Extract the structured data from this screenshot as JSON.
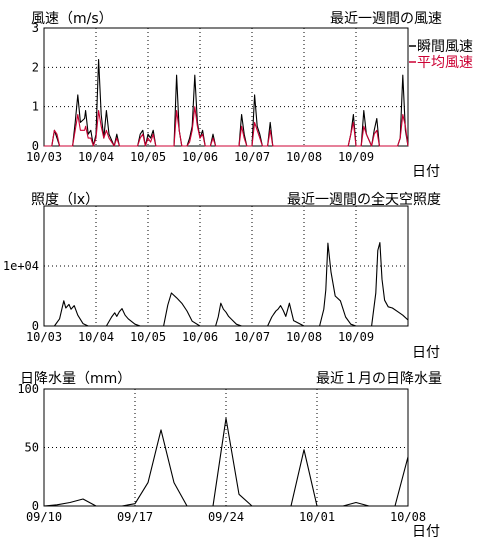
{
  "chart_data": [
    {
      "type": "line",
      "title": "最近一週間の風速",
      "ylabel": "風速（m/s）",
      "xlabel": "日付",
      "ylim": [
        0,
        3
      ],
      "yticks": [
        "0",
        "1",
        "2",
        "3"
      ],
      "categories": [
        "10/03",
        "10/04",
        "10/05",
        "10/06",
        "10/07",
        "10/08",
        "10/09"
      ],
      "x_max": 7,
      "grid": true,
      "legend": "top-right",
      "series": [
        {
          "name": "瞬間風速",
          "color": "#000000",
          "x": [
            0,
            0.15,
            0.2,
            0.25,
            0.3,
            0.55,
            0.6,
            0.65,
            0.7,
            0.78,
            0.8,
            0.85,
            0.9,
            0.95,
            1.0,
            1.05,
            1.1,
            1.15,
            1.2,
            1.25,
            1.35,
            1.4,
            1.45,
            1.8,
            1.85,
            1.9,
            1.95,
            2.0,
            2.05,
            2.1,
            2.15,
            2.5,
            2.55,
            2.6,
            2.65,
            2.75,
            2.8,
            2.85,
            2.9,
            2.95,
            3.0,
            3.05,
            3.1,
            3.2,
            3.25,
            3.3,
            3.75,
            3.8,
            3.85,
            3.9,
            3.95,
            4.0,
            4.05,
            4.1,
            4.15,
            4.2,
            4.3,
            4.35,
            4.4,
            5.85,
            5.9,
            5.95,
            6.0,
            6.1,
            6.15,
            6.2,
            6.3,
            6.35,
            6.4,
            6.45,
            6.8,
            6.85,
            6.9,
            6.95,
            7.0
          ],
          "y": [
            0,
            0,
            0.4,
            0.2,
            0,
            0,
            0.6,
            1.3,
            0.6,
            0.7,
            0.9,
            0.3,
            0.4,
            0,
            0.3,
            2.2,
            0.8,
            0.2,
            0.9,
            0.3,
            0,
            0.3,
            0,
            0,
            0.3,
            0.4,
            0,
            0.3,
            0.2,
            0.4,
            0,
            0,
            1.8,
            0.4,
            0,
            0,
            0.2,
            0.5,
            1.8,
            0.6,
            0.2,
            0.4,
            0,
            0,
            0.3,
            0,
            0,
            0.8,
            0.3,
            0,
            0,
            0,
            1.3,
            0.5,
            0.3,
            0,
            0,
            0.6,
            0,
            0,
            0.3,
            0.8,
            0,
            0,
            0.9,
            0.3,
            0,
            0.4,
            0.7,
            0,
            0,
            0.2,
            1.8,
            0.4,
            0
          ]
        },
        {
          "name": "平均風速",
          "color": "#cc0033",
          "x": [
            0,
            0.15,
            0.2,
            0.25,
            0.3,
            0.55,
            0.6,
            0.65,
            0.7,
            0.78,
            0.8,
            0.85,
            0.9,
            0.95,
            1.0,
            1.05,
            1.1,
            1.15,
            1.2,
            1.25,
            1.35,
            1.4,
            1.45,
            1.8,
            1.85,
            1.9,
            1.95,
            2.0,
            2.05,
            2.1,
            2.15,
            2.5,
            2.55,
            2.6,
            2.65,
            2.75,
            2.8,
            2.85,
            2.9,
            2.95,
            3.0,
            3.05,
            3.1,
            3.2,
            3.25,
            3.3,
            3.75,
            3.8,
            3.85,
            3.9,
            3.95,
            4.0,
            4.05,
            4.1,
            4.15,
            4.2,
            4.3,
            4.35,
            4.4,
            5.85,
            5.9,
            5.95,
            6.0,
            6.1,
            6.15,
            6.2,
            6.3,
            6.35,
            6.4,
            6.45,
            6.8,
            6.85,
            6.9,
            6.95,
            7.0
          ],
          "y": [
            0,
            0,
            0.4,
            0.3,
            0,
            0,
            0.4,
            0.8,
            0.4,
            0.4,
            0.5,
            0.2,
            0.2,
            0,
            0.2,
            0.9,
            0.5,
            0.2,
            0.4,
            0.2,
            0,
            0.2,
            0,
            0,
            0.2,
            0.3,
            0,
            0.2,
            0.1,
            0.3,
            0,
            0,
            0.9,
            0.4,
            0,
            0,
            0.1,
            0.4,
            1.0,
            0.5,
            0.2,
            0.3,
            0,
            0,
            0.2,
            0,
            0,
            0.5,
            0.2,
            0,
            0,
            0,
            0.6,
            0.4,
            0.2,
            0,
            0,
            0.4,
            0,
            0,
            0.3,
            0.6,
            0,
            0,
            0.5,
            0.3,
            0,
            0.3,
            0.4,
            0,
            0,
            0.2,
            0.8,
            0.5,
            0
          ]
        }
      ]
    },
    {
      "type": "line",
      "title": "最近一週間の全天空照度",
      "ylabel": "照度（lx）",
      "xlabel": "日付",
      "ylim": [
        0,
        20000
      ],
      "yticks": [
        "0",
        "1e+04"
      ],
      "ytick_values": [
        0,
        10000
      ],
      "categories": [
        "10/03",
        "10/04",
        "10/05",
        "10/06",
        "10/07",
        "10/08",
        "10/09"
      ],
      "x_max": 7,
      "grid": true,
      "series": [
        {
          "name": "",
          "color": "#000000",
          "x": [
            0,
            0.2,
            0.3,
            0.38,
            0.42,
            0.48,
            0.52,
            0.58,
            0.65,
            0.75,
            0.85,
            1.0,
            1.2,
            1.3,
            1.36,
            1.4,
            1.45,
            1.5,
            1.56,
            1.62,
            1.75,
            1.85,
            2.0,
            2.3,
            2.38,
            2.45,
            2.55,
            2.65,
            2.75,
            2.85,
            3.0,
            3.3,
            3.35,
            3.4,
            3.45,
            3.5,
            3.55,
            3.62,
            3.7,
            3.8,
            4.0,
            4.3,
            4.38,
            4.42,
            4.46,
            4.5,
            4.55,
            4.6,
            4.65,
            4.72,
            4.8,
            5.0,
            5.3,
            5.38,
            5.42,
            5.46,
            5.52,
            5.6,
            5.7,
            5.8,
            5.9,
            6.0,
            6.3,
            6.38,
            6.42,
            6.46,
            6.5,
            6.55,
            6.62,
            6.7,
            6.8,
            6.9,
            7.0
          ],
          "y": [
            0,
            0,
            1200,
            4200,
            3000,
            3600,
            2800,
            3400,
            1800,
            400,
            0,
            0,
            0,
            1500,
            2200,
            1600,
            2400,
            2900,
            1800,
            1200,
            300,
            0,
            0,
            0,
            3500,
            5500,
            4700,
            3800,
            2500,
            800,
            0,
            0,
            1500,
            3800,
            2800,
            2300,
            1600,
            1000,
            300,
            0,
            0,
            0,
            1500,
            2000,
            2500,
            2800,
            3400,
            2600,
            1600,
            3800,
            900,
            0,
            0,
            2800,
            6000,
            13800,
            9000,
            5000,
            4200,
            1500,
            300,
            0,
            0,
            5500,
            12600,
            13900,
            7800,
            4300,
            3200,
            3000,
            2400,
            1800,
            1000
          ]
        }
      ]
    },
    {
      "type": "line",
      "title": "最近１月の日降水量",
      "ylabel": "日降水量（mm）",
      "xlabel": "日付",
      "ylim": [
        0,
        100
      ],
      "yticks": [
        "0",
        "50",
        "100"
      ],
      "categories": [
        "09/10",
        "09/17",
        "09/24",
        "10/01",
        "10/08"
      ],
      "x_max": 28,
      "grid": true,
      "series": [
        {
          "name": "",
          "color": "#000000",
          "x": [
            0,
            1,
            2,
            3,
            4,
            5,
            6,
            7,
            8,
            9,
            10,
            11,
            12,
            13,
            14,
            15,
            16,
            17,
            18,
            19,
            20,
            21,
            22,
            23,
            24,
            25,
            26,
            27,
            28
          ],
          "y": [
            0,
            1,
            3,
            6,
            0,
            0,
            0,
            2,
            20,
            65,
            20,
            0,
            0,
            0,
            75,
            10,
            0,
            0,
            0,
            0,
            48,
            0,
            0,
            0,
            3,
            0,
            0,
            0,
            42
          ]
        }
      ]
    }
  ]
}
